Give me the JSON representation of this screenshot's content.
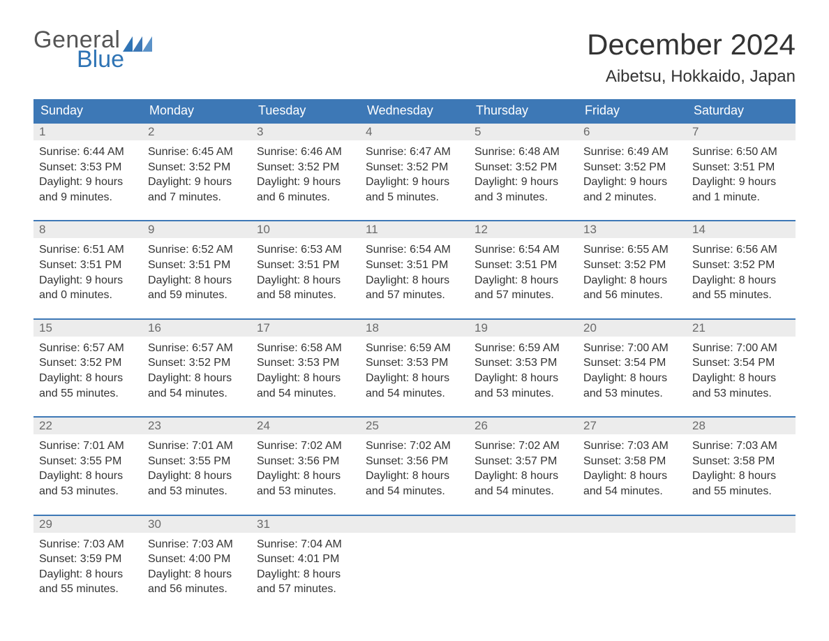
{
  "logo": {
    "text1": "General",
    "text2": "Blue",
    "text_color": "#555555",
    "accent_color": "#2f74b5"
  },
  "title": "December 2024",
  "location": "Aibetsu, Hokkaido, Japan",
  "colors": {
    "header_bg": "#3d78b6",
    "header_text": "#ffffff",
    "daynum_bg": "#ececec",
    "daynum_text": "#6a6a6a",
    "body_text": "#333333",
    "week_border": "#3d78b6",
    "page_bg": "#ffffff"
  },
  "fonts": {
    "title_size": 42,
    "location_size": 24,
    "header_size": 18,
    "body_size": 16
  },
  "dayNames": [
    "Sunday",
    "Monday",
    "Tuesday",
    "Wednesday",
    "Thursday",
    "Friday",
    "Saturday"
  ],
  "weeks": [
    [
      {
        "num": "1",
        "sunrise": "Sunrise: 6:44 AM",
        "sunset": "Sunset: 3:53 PM",
        "daylight": "Daylight: 9 hours and 9 minutes."
      },
      {
        "num": "2",
        "sunrise": "Sunrise: 6:45 AM",
        "sunset": "Sunset: 3:52 PM",
        "daylight": "Daylight: 9 hours and 7 minutes."
      },
      {
        "num": "3",
        "sunrise": "Sunrise: 6:46 AM",
        "sunset": "Sunset: 3:52 PM",
        "daylight": "Daylight: 9 hours and 6 minutes."
      },
      {
        "num": "4",
        "sunrise": "Sunrise: 6:47 AM",
        "sunset": "Sunset: 3:52 PM",
        "daylight": "Daylight: 9 hours and 5 minutes."
      },
      {
        "num": "5",
        "sunrise": "Sunrise: 6:48 AM",
        "sunset": "Sunset: 3:52 PM",
        "daylight": "Daylight: 9 hours and 3 minutes."
      },
      {
        "num": "6",
        "sunrise": "Sunrise: 6:49 AM",
        "sunset": "Sunset: 3:52 PM",
        "daylight": "Daylight: 9 hours and 2 minutes."
      },
      {
        "num": "7",
        "sunrise": "Sunrise: 6:50 AM",
        "sunset": "Sunset: 3:51 PM",
        "daylight": "Daylight: 9 hours and 1 minute."
      }
    ],
    [
      {
        "num": "8",
        "sunrise": "Sunrise: 6:51 AM",
        "sunset": "Sunset: 3:51 PM",
        "daylight": "Daylight: 9 hours and 0 minutes."
      },
      {
        "num": "9",
        "sunrise": "Sunrise: 6:52 AM",
        "sunset": "Sunset: 3:51 PM",
        "daylight": "Daylight: 8 hours and 59 minutes."
      },
      {
        "num": "10",
        "sunrise": "Sunrise: 6:53 AM",
        "sunset": "Sunset: 3:51 PM",
        "daylight": "Daylight: 8 hours and 58 minutes."
      },
      {
        "num": "11",
        "sunrise": "Sunrise: 6:54 AM",
        "sunset": "Sunset: 3:51 PM",
        "daylight": "Daylight: 8 hours and 57 minutes."
      },
      {
        "num": "12",
        "sunrise": "Sunrise: 6:54 AM",
        "sunset": "Sunset: 3:51 PM",
        "daylight": "Daylight: 8 hours and 57 minutes."
      },
      {
        "num": "13",
        "sunrise": "Sunrise: 6:55 AM",
        "sunset": "Sunset: 3:52 PM",
        "daylight": "Daylight: 8 hours and 56 minutes."
      },
      {
        "num": "14",
        "sunrise": "Sunrise: 6:56 AM",
        "sunset": "Sunset: 3:52 PM",
        "daylight": "Daylight: 8 hours and 55 minutes."
      }
    ],
    [
      {
        "num": "15",
        "sunrise": "Sunrise: 6:57 AM",
        "sunset": "Sunset: 3:52 PM",
        "daylight": "Daylight: 8 hours and 55 minutes."
      },
      {
        "num": "16",
        "sunrise": "Sunrise: 6:57 AM",
        "sunset": "Sunset: 3:52 PM",
        "daylight": "Daylight: 8 hours and 54 minutes."
      },
      {
        "num": "17",
        "sunrise": "Sunrise: 6:58 AM",
        "sunset": "Sunset: 3:53 PM",
        "daylight": "Daylight: 8 hours and 54 minutes."
      },
      {
        "num": "18",
        "sunrise": "Sunrise: 6:59 AM",
        "sunset": "Sunset: 3:53 PM",
        "daylight": "Daylight: 8 hours and 54 minutes."
      },
      {
        "num": "19",
        "sunrise": "Sunrise: 6:59 AM",
        "sunset": "Sunset: 3:53 PM",
        "daylight": "Daylight: 8 hours and 53 minutes."
      },
      {
        "num": "20",
        "sunrise": "Sunrise: 7:00 AM",
        "sunset": "Sunset: 3:54 PM",
        "daylight": "Daylight: 8 hours and 53 minutes."
      },
      {
        "num": "21",
        "sunrise": "Sunrise: 7:00 AM",
        "sunset": "Sunset: 3:54 PM",
        "daylight": "Daylight: 8 hours and 53 minutes."
      }
    ],
    [
      {
        "num": "22",
        "sunrise": "Sunrise: 7:01 AM",
        "sunset": "Sunset: 3:55 PM",
        "daylight": "Daylight: 8 hours and 53 minutes."
      },
      {
        "num": "23",
        "sunrise": "Sunrise: 7:01 AM",
        "sunset": "Sunset: 3:55 PM",
        "daylight": "Daylight: 8 hours and 53 minutes."
      },
      {
        "num": "24",
        "sunrise": "Sunrise: 7:02 AM",
        "sunset": "Sunset: 3:56 PM",
        "daylight": "Daylight: 8 hours and 53 minutes."
      },
      {
        "num": "25",
        "sunrise": "Sunrise: 7:02 AM",
        "sunset": "Sunset: 3:56 PM",
        "daylight": "Daylight: 8 hours and 54 minutes."
      },
      {
        "num": "26",
        "sunrise": "Sunrise: 7:02 AM",
        "sunset": "Sunset: 3:57 PM",
        "daylight": "Daylight: 8 hours and 54 minutes."
      },
      {
        "num": "27",
        "sunrise": "Sunrise: 7:03 AM",
        "sunset": "Sunset: 3:58 PM",
        "daylight": "Daylight: 8 hours and 54 minutes."
      },
      {
        "num": "28",
        "sunrise": "Sunrise: 7:03 AM",
        "sunset": "Sunset: 3:58 PM",
        "daylight": "Daylight: 8 hours and 55 minutes."
      }
    ],
    [
      {
        "num": "29",
        "sunrise": "Sunrise: 7:03 AM",
        "sunset": "Sunset: 3:59 PM",
        "daylight": "Daylight: 8 hours and 55 minutes."
      },
      {
        "num": "30",
        "sunrise": "Sunrise: 7:03 AM",
        "sunset": "Sunset: 4:00 PM",
        "daylight": "Daylight: 8 hours and 56 minutes."
      },
      {
        "num": "31",
        "sunrise": "Sunrise: 7:04 AM",
        "sunset": "Sunset: 4:01 PM",
        "daylight": "Daylight: 8 hours and 57 minutes."
      },
      null,
      null,
      null,
      null
    ]
  ]
}
